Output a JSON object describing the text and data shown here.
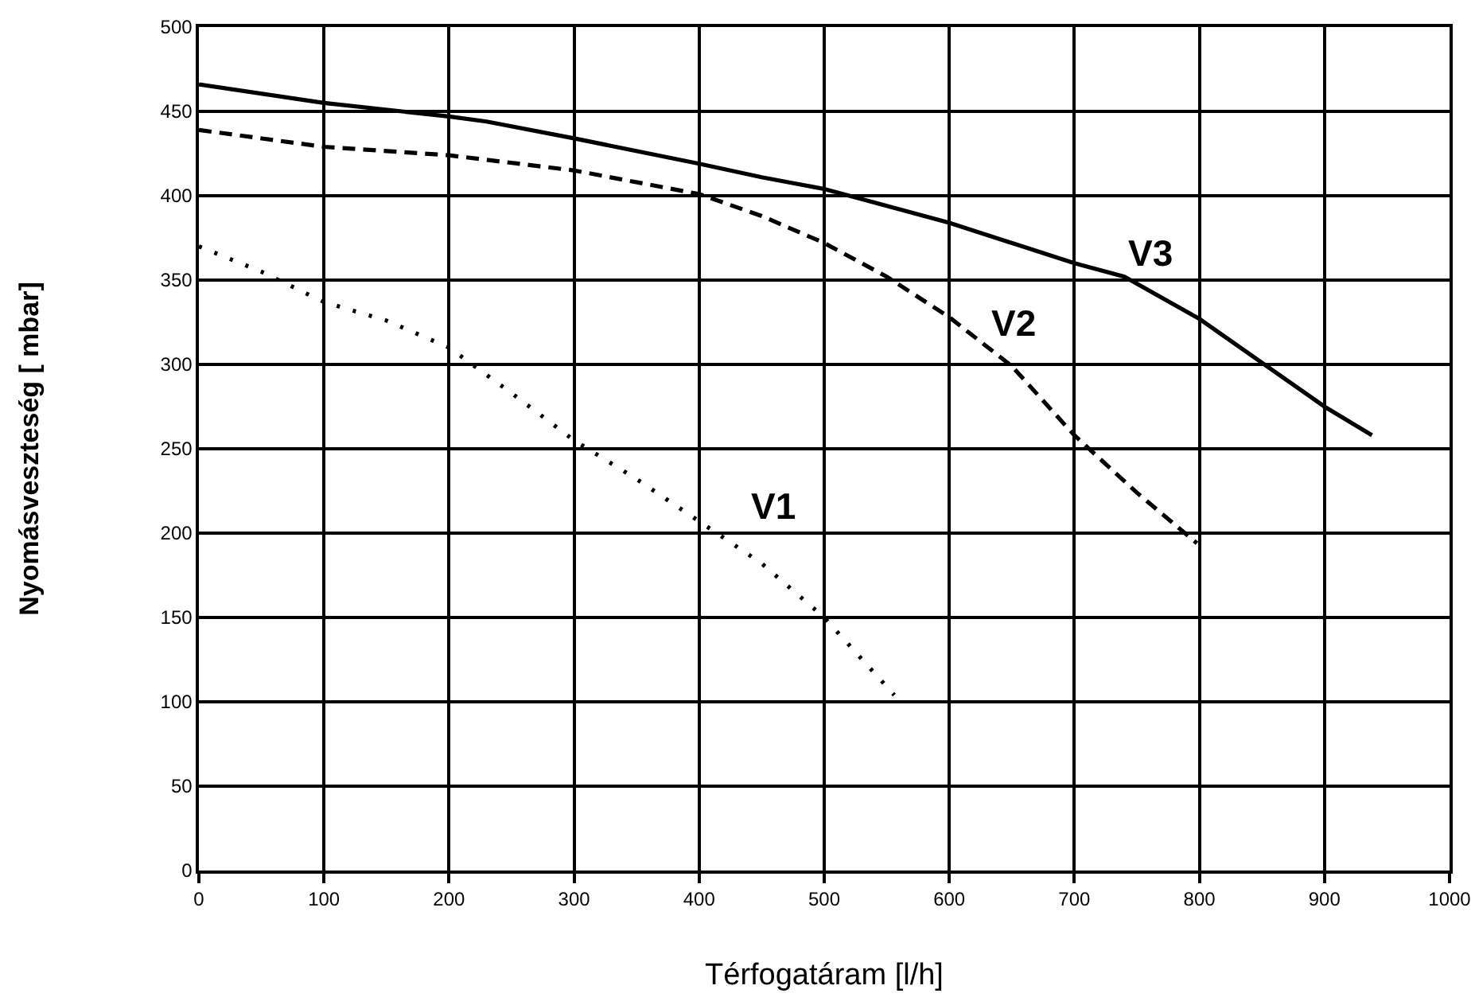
{
  "chart_data": {
    "type": "line",
    "xlabel": "Térfogatáram [l/h]",
    "ylabel": "Nyomásveszteség [ mbar]",
    "xlim": [
      0,
      1000
    ],
    "xticks": [
      0,
      100,
      200,
      300,
      400,
      500,
      600,
      700,
      800,
      900,
      1000
    ],
    "ylim": [
      0,
      500
    ],
    "yticks": [
      0,
      50,
      100,
      150,
      200,
      250,
      300,
      350,
      400,
      450,
      500
    ],
    "grid": true,
    "legend": false,
    "marker": "none",
    "series": [
      {
        "name": "V3",
        "color": "#000000",
        "line_style": "solid",
        "x": [
          0,
          100,
          200,
          230,
          300,
          400,
          450,
          500,
          600,
          700,
          740,
          800,
          850,
          900,
          938
        ],
        "values": [
          466,
          455,
          447,
          444,
          434,
          419,
          411,
          404,
          384,
          360,
          352,
          327,
          301,
          275,
          258
        ]
      },
      {
        "name": "V2",
        "color": "#000000",
        "line_style": "dashed",
        "x": [
          0,
          100,
          200,
          300,
          400,
          450,
          500,
          550,
          600,
          650,
          700,
          750,
          798
        ],
        "values": [
          439,
          429,
          424,
          415,
          401,
          388,
          372,
          352,
          328,
          299,
          258,
          224,
          194
        ]
      },
      {
        "name": "V1",
        "color": "#000000",
        "line_style": "dotted",
        "x": [
          0,
          50,
          100,
          150,
          200,
          250,
          300,
          350,
          400,
          450,
          500,
          556
        ],
        "values": [
          370,
          355,
          337,
          326,
          310,
          283,
          255,
          232,
          207,
          182,
          150,
          104
        ]
      }
    ]
  }
}
